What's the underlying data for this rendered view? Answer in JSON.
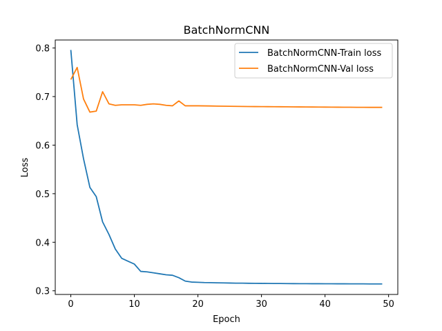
{
  "chart_data": {
    "type": "line",
    "title": "BatchNormCNN",
    "xlabel": "Epoch",
    "ylabel": "Loss",
    "xlim": [
      -2.45,
      51.45
    ],
    "ylim": [
      0.2925,
      0.8165
    ],
    "xticks": [
      0,
      10,
      20,
      30,
      40,
      50
    ],
    "yticks": [
      0.3,
      0.4,
      0.5,
      0.6,
      0.7,
      0.8
    ],
    "ytick_labels": [
      "0.3",
      "0.4",
      "0.5",
      "0.6",
      "0.7",
      "0.8"
    ],
    "grid": false,
    "legend": "top-right",
    "x": [
      0,
      1,
      2,
      3,
      4,
      5,
      6,
      7,
      8,
      9,
      10,
      11,
      12,
      13,
      14,
      15,
      16,
      17,
      18,
      19,
      20,
      21,
      22,
      23,
      24,
      25,
      26,
      27,
      28,
      29,
      30,
      31,
      32,
      33,
      34,
      35,
      36,
      37,
      38,
      39,
      40,
      41,
      42,
      43,
      44,
      45,
      46,
      47,
      48,
      49
    ],
    "series": [
      {
        "name": "BatchNormCNN-Train loss",
        "color": "#1f77b4",
        "values": [
          0.796,
          0.642,
          0.572,
          0.513,
          0.494,
          0.442,
          0.416,
          0.386,
          0.367,
          0.361,
          0.355,
          0.34,
          0.339,
          0.337,
          0.335,
          0.333,
          0.332,
          0.327,
          0.32,
          0.318,
          0.3175,
          0.317,
          0.3168,
          0.3165,
          0.3163,
          0.316,
          0.3158,
          0.3157,
          0.3155,
          0.3154,
          0.3153,
          0.3152,
          0.3151,
          0.315,
          0.3149,
          0.3148,
          0.3147,
          0.3147,
          0.3146,
          0.3146,
          0.3145,
          0.3145,
          0.3144,
          0.3144,
          0.3143,
          0.3143,
          0.3143,
          0.3142,
          0.3142,
          0.3142
        ]
      },
      {
        "name": "BatchNormCNN-Val loss",
        "color": "#ff7f0e",
        "values": [
          0.735,
          0.76,
          0.695,
          0.668,
          0.67,
          0.71,
          0.685,
          0.682,
          0.683,
          0.683,
          0.683,
          0.682,
          0.684,
          0.685,
          0.684,
          0.682,
          0.681,
          0.691,
          0.681,
          0.681,
          0.681,
          0.6808,
          0.6806,
          0.6804,
          0.6802,
          0.68,
          0.6798,
          0.6796,
          0.6795,
          0.6794,
          0.6793,
          0.6792,
          0.6791,
          0.679,
          0.6789,
          0.6788,
          0.6787,
          0.6786,
          0.6785,
          0.6784,
          0.6783,
          0.6782,
          0.6781,
          0.678,
          0.678,
          0.6779,
          0.6779,
          0.6778,
          0.6778,
          0.6778
        ]
      }
    ]
  }
}
